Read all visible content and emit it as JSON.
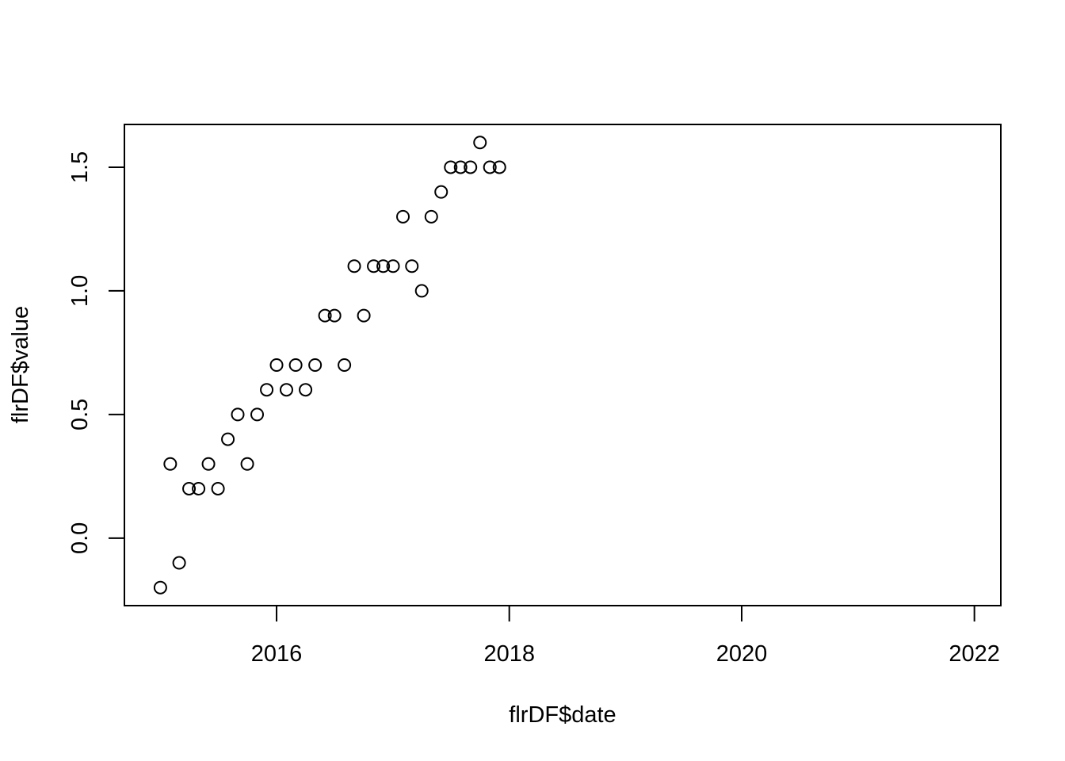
{
  "chart_data": {
    "type": "scatter",
    "title": "",
    "xlabel": "flrDF$date",
    "ylabel": "flrDF$value",
    "xlim": [
      "2014-09-10",
      "2022-03-25"
    ],
    "ylim": [
      -0.273,
      1.673
    ],
    "x_ticks": [
      {
        "date": "2016-01-01",
        "label": "2016"
      },
      {
        "date": "2018-01-01",
        "label": "2018"
      },
      {
        "date": "2020-01-01",
        "label": "2020"
      },
      {
        "date": "2022-01-01",
        "label": "2022"
      }
    ],
    "y_ticks": [
      {
        "value": 0.0,
        "label": "0.0"
      },
      {
        "value": 0.5,
        "label": "0.5"
      },
      {
        "value": 1.0,
        "label": "1.0"
      },
      {
        "value": 1.5,
        "label": "1.5"
      }
    ],
    "grid": false,
    "legend": "none",
    "marker": "open-circle",
    "points": [
      {
        "x": "2015-01-01",
        "y": -0.2
      },
      {
        "x": "2015-02-01",
        "y": 0.3
      },
      {
        "x": "2015-03-01",
        "y": -0.1
      },
      {
        "x": "2015-04-01",
        "y": 0.2
      },
      {
        "x": "2015-05-01",
        "y": 0.2
      },
      {
        "x": "2015-06-01",
        "y": 0.3
      },
      {
        "x": "2015-07-01",
        "y": 0.2
      },
      {
        "x": "2015-08-01",
        "y": 0.4
      },
      {
        "x": "2015-09-01",
        "y": 0.5
      },
      {
        "x": "2015-10-01",
        "y": 0.3
      },
      {
        "x": "2015-11-01",
        "y": 0.5
      },
      {
        "x": "2015-12-01",
        "y": 0.6
      },
      {
        "x": "2016-01-01",
        "y": 0.7
      },
      {
        "x": "2016-02-01",
        "y": 0.6
      },
      {
        "x": "2016-03-01",
        "y": 0.7
      },
      {
        "x": "2016-04-01",
        "y": 0.6
      },
      {
        "x": "2016-05-01",
        "y": 0.7
      },
      {
        "x": "2016-06-01",
        "y": 0.9
      },
      {
        "x": "2016-07-01",
        "y": 0.9
      },
      {
        "x": "2016-08-01",
        "y": 0.7
      },
      {
        "x": "2016-09-01",
        "y": 1.1
      },
      {
        "x": "2016-10-01",
        "y": 0.9
      },
      {
        "x": "2016-11-01",
        "y": 1.1
      },
      {
        "x": "2016-12-01",
        "y": 1.1
      },
      {
        "x": "2017-01-01",
        "y": 1.1
      },
      {
        "x": "2017-02-01",
        "y": 1.3
      },
      {
        "x": "2017-03-01",
        "y": 1.1
      },
      {
        "x": "2017-04-01",
        "y": 1.0
      },
      {
        "x": "2017-05-01",
        "y": 1.3
      },
      {
        "x": "2017-06-01",
        "y": 1.4
      },
      {
        "x": "2017-07-01",
        "y": 1.5
      },
      {
        "x": "2017-08-01",
        "y": 1.5
      },
      {
        "x": "2017-09-01",
        "y": 1.5
      },
      {
        "x": "2017-10-01",
        "y": 1.6
      },
      {
        "x": "2017-11-01",
        "y": 1.5
      },
      {
        "x": "2017-12-01",
        "y": 1.5
      }
    ],
    "colors": {
      "marker": "#000000",
      "axes": "#000000",
      "background": "#ffffff"
    }
  }
}
